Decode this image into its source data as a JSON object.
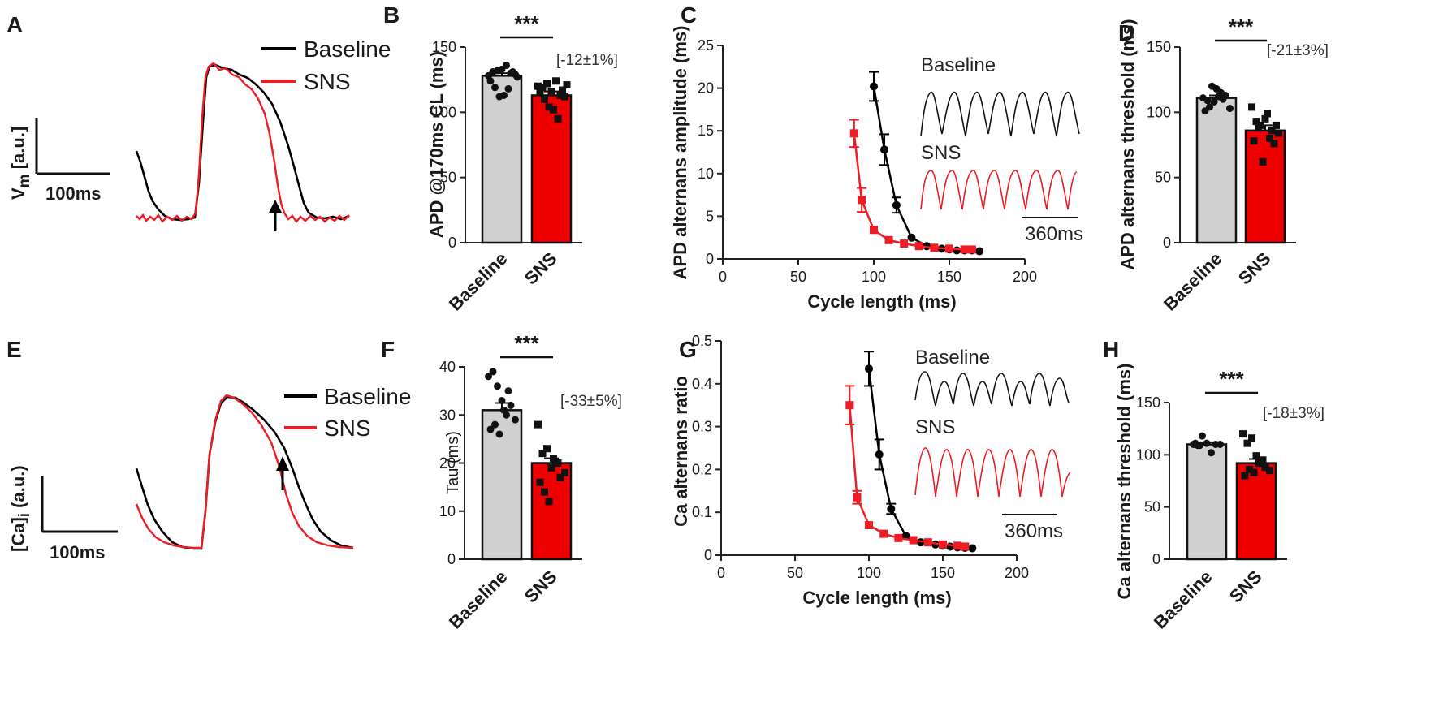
{
  "colors": {
    "baseline": "#000000",
    "sns": "#ee1c25",
    "bar_baseline": "#d0d0d0",
    "bar_sns": "#ee0000"
  },
  "panel_A": {
    "label": "A",
    "legend": [
      "Baseline",
      "SNS"
    ],
    "ylabel": "V",
    "ylabel_sub": "m",
    "ylabel_unit": " [a.u.]",
    "scale_label": "100ms"
  },
  "panel_E": {
    "label": "E",
    "legend": [
      "Baseline",
      "SNS"
    ],
    "ylabel": "[Ca]",
    "ylabel_sub": "i",
    "ylabel_unit": " (a.u.)",
    "scale_label": "100ms"
  },
  "panel_C_inset": {
    "labels": [
      "Baseline",
      "SNS"
    ],
    "scale_label": "360ms"
  },
  "panel_G_inset": {
    "labels": [
      "Baseline",
      "SNS"
    ],
    "scale_label": "360ms"
  },
  "chart_data": [
    {
      "id": "B",
      "label": "B",
      "type": "bar",
      "categories": [
        "Baseline",
        "SNS"
      ],
      "values": [
        128,
        113
      ],
      "errors": [
        2,
        3
      ],
      "points": [
        [
          128,
          131,
          132,
          133,
          136,
          130,
          129,
          124,
          119,
          112,
          113,
          118,
          131,
          127
        ],
        [
          120,
          119,
          122,
          116,
          124,
          113,
          112,
          115,
          110,
          104,
          102,
          95,
          117,
          121
        ]
      ],
      "ylabel": "APD @170ms CL  (ms)",
      "ylim": [
        0,
        150
      ],
      "yticks": [
        0,
        50,
        100,
        150
      ],
      "significance": "***",
      "annotation": "[-12±1%]"
    },
    {
      "id": "C",
      "label": "C",
      "type": "line",
      "xlabel": "Cycle length (ms)",
      "ylabel": "APD alternans amplitude (ms)",
      "xlim": [
        0,
        200
      ],
      "xticks": [
        0,
        50,
        100,
        150,
        200
      ],
      "ylim": [
        0,
        25
      ],
      "yticks": [
        0,
        5,
        10,
        15,
        20,
        25
      ],
      "series": [
        {
          "name": "Baseline",
          "x": [
            100,
            107,
            115,
            125,
            135,
            145,
            150,
            155,
            160,
            165,
            170
          ],
          "y": [
            20.2,
            12.8,
            6.3,
            2.5,
            1.5,
            1.2,
            1.1,
            1.0,
            1.0,
            1.0,
            0.9
          ],
          "err": [
            1.7,
            1.8,
            0.9,
            0,
            0,
            0,
            0,
            0,
            0,
            0,
            0
          ]
        },
        {
          "name": "SNS",
          "x": [
            87,
            92,
            100,
            110,
            120,
            130,
            140,
            150,
            160,
            165
          ],
          "y": [
            14.7,
            6.9,
            3.4,
            2.2,
            1.8,
            1.5,
            1.3,
            1.2,
            1.1,
            1.1
          ],
          "err": [
            1.6,
            1.4,
            0,
            0,
            0,
            0,
            0,
            0,
            0,
            0
          ]
        }
      ]
    },
    {
      "id": "D",
      "label": "D",
      "type": "bar",
      "categories": [
        "Baseline",
        "SNS"
      ],
      "values": [
        111,
        86
      ],
      "errors": [
        2,
        4
      ],
      "points": [
        [
          111,
          109,
          120,
          118,
          115,
          113,
          103,
          101,
          104,
          108,
          112,
          110
        ],
        [
          104,
          93,
          90,
          95,
          80,
          76,
          84,
          78,
          88,
          62,
          99,
          86,
          90
        ]
      ],
      "ylabel": "APD alternans threshold (ms)",
      "ylim": [
        0,
        150
      ],
      "yticks": [
        0,
        50,
        100,
        150
      ],
      "significance": "***",
      "annotation": "[-21±3%]"
    },
    {
      "id": "F",
      "label": "F",
      "type": "bar",
      "categories": [
        "Baseline",
        "SNS"
      ],
      "values": [
        31,
        20
      ],
      "errors": [
        1.5,
        1
      ],
      "points": [
        [
          38,
          39,
          36,
          33,
          30,
          32,
          29,
          27,
          28,
          26,
          31,
          35
        ],
        [
          28,
          22,
          23,
          19,
          20,
          17,
          18,
          16,
          14,
          12,
          21,
          20
        ]
      ],
      "ylabel": "Tau (ms)",
      "ylim": [
        0,
        40
      ],
      "yticks": [
        0,
        10,
        20,
        30,
        40
      ],
      "significance": "***",
      "annotation": "[-33±5%]"
    },
    {
      "id": "G",
      "label": "G",
      "type": "line",
      "xlabel": "Cycle length (ms)",
      "ylabel": "Ca alternans ratio",
      "xlim": [
        0,
        200
      ],
      "xticks": [
        0,
        50,
        100,
        150,
        200
      ],
      "ylim": [
        0,
        0.5
      ],
      "yticks": [
        0,
        0.1,
        0.2,
        0.3,
        0.4,
        0.5
      ],
      "series": [
        {
          "name": "Baseline",
          "x": [
            100,
            107,
            115,
            125,
            135,
            145,
            150,
            155,
            160,
            165,
            170
          ],
          "y": [
            0.435,
            0.235,
            0.108,
            0.045,
            0.03,
            0.025,
            0.022,
            0.02,
            0.018,
            0.017,
            0.016
          ],
          "err": [
            0.04,
            0.035,
            0.012,
            0,
            0,
            0,
            0,
            0,
            0,
            0,
            0
          ]
        },
        {
          "name": "SNS",
          "x": [
            87,
            92,
            100,
            110,
            120,
            130,
            140,
            150,
            160,
            165
          ],
          "y": [
            0.35,
            0.135,
            0.07,
            0.05,
            0.04,
            0.035,
            0.03,
            0.025,
            0.022,
            0.02
          ],
          "err": [
            0.045,
            0.015,
            0,
            0,
            0,
            0,
            0,
            0,
            0,
            0
          ]
        }
      ]
    },
    {
      "id": "H",
      "label": "H",
      "type": "bar",
      "categories": [
        "Baseline",
        "SNS"
      ],
      "values": [
        110,
        92
      ],
      "errors": [
        2,
        4
      ],
      "points": [
        [
          110,
          109,
          118,
          111,
          102,
          110,
          110,
          111,
          109
        ],
        [
          120,
          111,
          116,
          99,
          93,
          88,
          85,
          80,
          86,
          83,
          92,
          95
        ]
      ],
      "ylabel": "Ca alternans threshold (ms)",
      "ylim": [
        0,
        150
      ],
      "yticks": [
        0,
        50,
        100,
        150
      ],
      "significance": "***",
      "annotation": "[-18±3%]"
    }
  ]
}
